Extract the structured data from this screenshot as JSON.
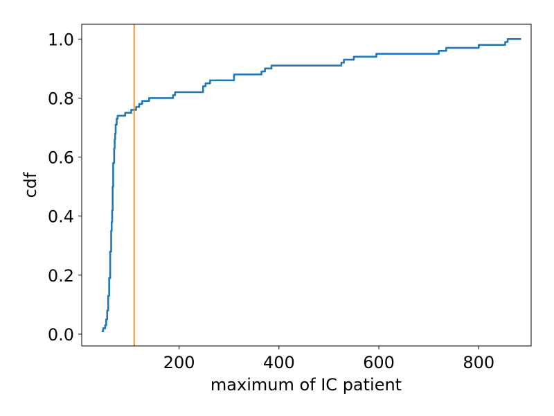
{
  "chart_data": {
    "type": "line",
    "title": "",
    "xlabel": "maximum of IC patient",
    "ylabel": "cdf",
    "xlim": [
      5,
      905
    ],
    "ylim": [
      -0.04,
      1.05
    ],
    "xticks": [
      200,
      400,
      600,
      800
    ],
    "yticks": [
      0.0,
      0.2,
      0.4,
      0.6,
      0.8,
      1.0
    ],
    "xtick_labels": [
      "200",
      "400",
      "600",
      "800"
    ],
    "ytick_labels": [
      "0.0",
      "0.2",
      "0.4",
      "0.6",
      "0.8",
      "1.0"
    ],
    "grid": false,
    "legend": "none",
    "series": [
      {
        "color": "#1f77b4",
        "step": true,
        "x": [
          45,
          48,
          52,
          54,
          56,
          58,
          60,
          62,
          64,
          65,
          66,
          67,
          68,
          70,
          71,
          72,
          73,
          75,
          77,
          79,
          81,
          83,
          86,
          92,
          104,
          114,
          120,
          126,
          140,
          150,
          188,
          192,
          248,
          253,
          262,
          275,
          310,
          315,
          365,
          372,
          385,
          405,
          525,
          530,
          550,
          595,
          720,
          735,
          800,
          853,
          858,
          885
        ],
        "y": [
          0.01,
          0.02,
          0.03,
          0.05,
          0.08,
          0.13,
          0.19,
          0.28,
          0.35,
          0.38,
          0.42,
          0.5,
          0.58,
          0.63,
          0.66,
          0.68,
          0.71,
          0.73,
          0.74,
          0.74,
          0.74,
          0.74,
          0.74,
          0.75,
          0.76,
          0.77,
          0.78,
          0.79,
          0.8,
          0.8,
          0.81,
          0.82,
          0.84,
          0.85,
          0.86,
          0.86,
          0.88,
          0.88,
          0.89,
          0.9,
          0.91,
          0.91,
          0.92,
          0.93,
          0.94,
          0.95,
          0.96,
          0.97,
          0.98,
          0.99,
          1.0,
          1.0
        ]
      }
    ],
    "reference_lines": [
      {
        "orientation": "vertical",
        "x": 110,
        "color": "#ff7f0e"
      }
    ]
  }
}
